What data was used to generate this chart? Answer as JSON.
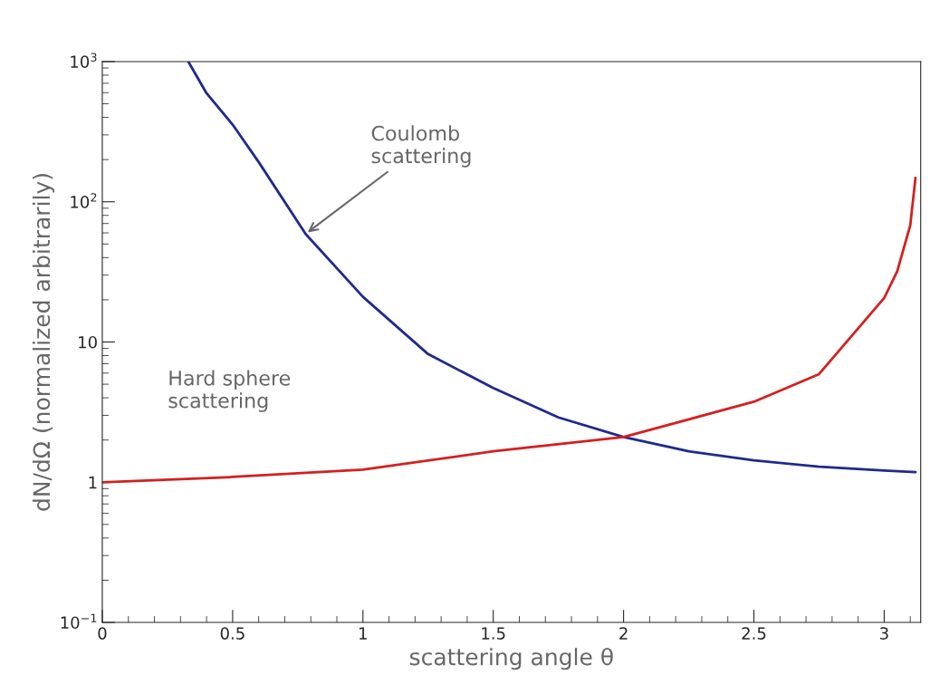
{
  "chart_data": {
    "type": "line",
    "xlabel": "scattering angle θ",
    "ylabel": "dN/dΩ (normalized arbitrarily)",
    "xlim": [
      0,
      3.14
    ],
    "xticks": [
      0,
      0.5,
      1,
      1.5,
      2,
      2.5,
      3
    ],
    "ylim": [
      0.1,
      1000
    ],
    "log": true,
    "yticks": [
      {
        "value": 0.1,
        "label": "10$^{−1}$"
      },
      1,
      10,
      {
        "value": 100,
        "label": "10$^{2}$"
      },
      {
        "value": 1000,
        "label": "10$^{3}$"
      }
    ],
    "grid": false,
    "legend": false,
    "marker": "none",
    "line_style": "solid",
    "series": [
      {
        "color": "#1f2a8c",
        "x": [
          0.33,
          0.4,
          0.5,
          0.6,
          0.78,
          1.0,
          1.25,
          1.5,
          1.75,
          2.0,
          2.25,
          2.5,
          2.75,
          3.0,
          3.12
        ],
        "values": [
          1000,
          594,
          355,
          192,
          59,
          21,
          8.2,
          4.7,
          2.9,
          2.1,
          1.66,
          1.43,
          1.29,
          1.21,
          1.18
        ]
      },
      {
        "color": "#d42020",
        "x": [
          0,
          0.5,
          1.0,
          1.5,
          2.0,
          2.5,
          2.75,
          3.0,
          3.05,
          3.1,
          3.12
        ],
        "values": [
          1.0,
          1.09,
          1.23,
          1.66,
          2.1,
          3.75,
          5.9,
          20.6,
          32,
          68,
          148
        ]
      }
    ],
    "annotations": [
      {
        "text": "Coulomb\nscattering",
        "x": 0.78,
        "y": 59
      },
      "Hard sphere\nscattering"
    ]
  }
}
